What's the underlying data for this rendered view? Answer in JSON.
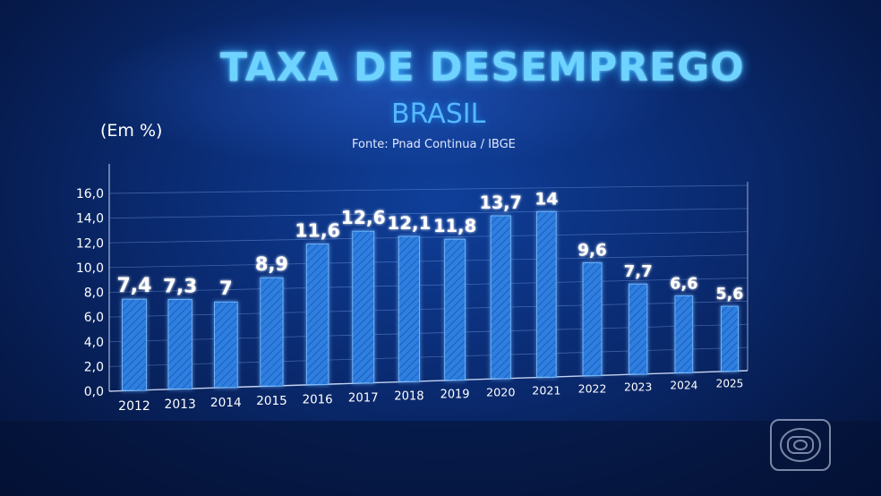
{
  "title": "TAXA DE DESEMPREGO",
  "subtitle": "BRASIL",
  "source": "Fonte: Pnad Continua / IBGE",
  "unit_label": "(Em %)",
  "colors": {
    "bar": "#2f7fe0",
    "bar_light": "#5aa7ff",
    "title": "#6fd3ff",
    "axis": "#d8e6ff"
  },
  "chart_data": {
    "type": "bar",
    "title": "TAXA DE DESEMPREGO",
    "subtitle": "BRASIL",
    "ylabel": "(Em %)",
    "xlabel": "",
    "ylim": [
      0,
      16
    ],
    "grid": true,
    "y_ticks": [
      "0,0",
      "2,0",
      "4,0",
      "6,0",
      "8,0",
      "10,0",
      "12,0",
      "14,0",
      "16,0"
    ],
    "categories": [
      "2012",
      "2013",
      "2014",
      "2015",
      "2016",
      "2017",
      "2018",
      "2019",
      "2020",
      "2021",
      "2022",
      "2023",
      "2024",
      "2025"
    ],
    "values": [
      7.4,
      7.3,
      7,
      8.9,
      11.6,
      12.6,
      12.1,
      11.8,
      13.7,
      14,
      9.6,
      7.7,
      6.6,
      5.6
    ],
    "value_labels": [
      "7,4",
      "7,3",
      "7",
      "8,9",
      "11,6",
      "12,6",
      "12,1",
      "11,8",
      "13,7",
      "14",
      "9,6",
      "7,7",
      "6,6",
      "5,6"
    ]
  }
}
